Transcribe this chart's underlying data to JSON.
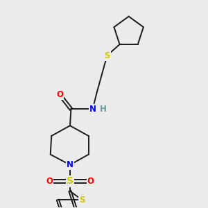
{
  "bg_color": "#ebebeb",
  "bond_color": "#1a1a1a",
  "atom_colors": {
    "O": "#ff0000",
    "N": "#0000ff",
    "S": "#cccc00",
    "H": "#5f9ea0",
    "C": "#1a1a1a"
  },
  "font_size": 8.5,
  "lw": 1.4
}
